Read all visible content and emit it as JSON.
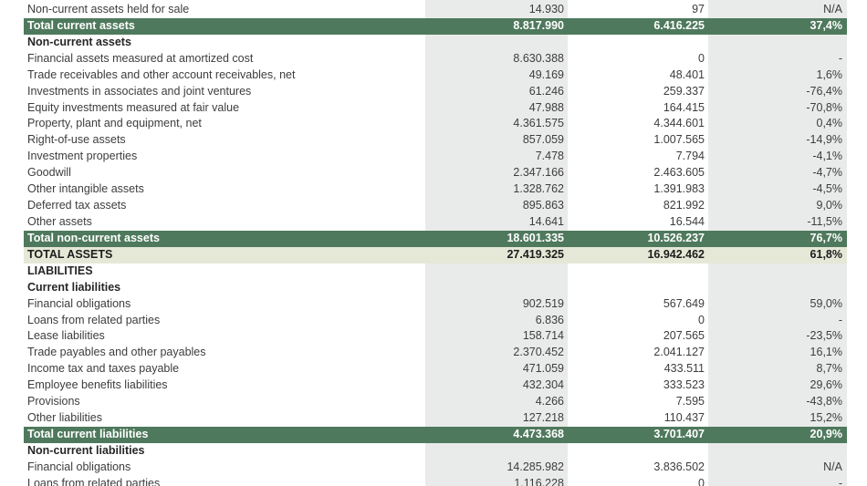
{
  "colors": {
    "total_row_green": "#4f795d",
    "column_fill": "#e8ebe9",
    "grand_total_fill": "#e6e8d7"
  },
  "table": {
    "rows": [
      {
        "type": "normal",
        "label": "Non-current assets held for sale",
        "v1": "14.930",
        "v2": "97",
        "pct": "N/A"
      },
      {
        "type": "total",
        "label": "Total current assets",
        "v1": "8.817.990",
        "v2": "6.416.225",
        "pct": "37,4%"
      },
      {
        "type": "header",
        "label": "Non-current assets",
        "v1": "",
        "v2": "",
        "pct": ""
      },
      {
        "type": "normal",
        "label": "Financial assets measured at amortized cost",
        "v1": "8.630.388",
        "v2": "0",
        "pct": "-"
      },
      {
        "type": "normal",
        "label": "Trade receivables and other account receivables, net",
        "v1": "49.169",
        "v2": "48.401",
        "pct": "1,6%"
      },
      {
        "type": "normal",
        "label": "Investments in associates and joint ventures",
        "v1": "61.246",
        "v2": "259.337",
        "pct": "-76,4%"
      },
      {
        "type": "normal",
        "label": "Equity investments measured at fair value",
        "v1": "47.988",
        "v2": "164.415",
        "pct": "-70,8%"
      },
      {
        "type": "normal",
        "label": "Property, plant and equipment, net",
        "v1": "4.361.575",
        "v2": "4.344.601",
        "pct": "0,4%"
      },
      {
        "type": "normal",
        "label": "Right-of-use assets",
        "v1": "857.059",
        "v2": "1.007.565",
        "pct": "-14,9%"
      },
      {
        "type": "normal",
        "label": "Investment properties",
        "v1": "7.478",
        "v2": "7.794",
        "pct": "-4,1%"
      },
      {
        "type": "normal",
        "label": "Goodwill",
        "v1": "2.347.166",
        "v2": "2.463.605",
        "pct": "-4,7%"
      },
      {
        "type": "normal",
        "label": "Other intangible assets",
        "v1": "1.328.762",
        "v2": "1.391.983",
        "pct": "-4,5%"
      },
      {
        "type": "normal",
        "label": "Deferred tax assets",
        "v1": "895.863",
        "v2": "821.992",
        "pct": "9,0%"
      },
      {
        "type": "normal",
        "label": "Other assets",
        "v1": "14.641",
        "v2": "16.544",
        "pct": "-11,5%"
      },
      {
        "type": "total",
        "label": "Total non-current assets",
        "v1": "18.601.335",
        "v2": "10.526.237",
        "pct": "76,7%"
      },
      {
        "type": "grandtotal",
        "label": "TOTAL ASSETS",
        "v1": "27.419.325",
        "v2": "16.942.462",
        "pct": "61,8%"
      },
      {
        "type": "header",
        "label": "LIABILITIES",
        "v1": "",
        "v2": "",
        "pct": ""
      },
      {
        "type": "header",
        "label": "Current liabilities",
        "v1": "",
        "v2": "",
        "pct": ""
      },
      {
        "type": "normal",
        "label": "Financial obligations",
        "v1": "902.519",
        "v2": "567.649",
        "pct": "59,0%"
      },
      {
        "type": "normal",
        "label": "Loans from related parties",
        "v1": "6.836",
        "v2": "0",
        "pct": "-"
      },
      {
        "type": "normal",
        "label": "Lease liabilities",
        "v1": "158.714",
        "v2": "207.565",
        "pct": "-23,5%"
      },
      {
        "type": "normal",
        "label": "Trade payables and other payables",
        "v1": "2.370.452",
        "v2": "2.041.127",
        "pct": "16,1%"
      },
      {
        "type": "normal",
        "label": "Income tax and taxes payable",
        "v1": "471.059",
        "v2": "433.511",
        "pct": "8,7%"
      },
      {
        "type": "normal",
        "label": "Employee benefits liabilities",
        "v1": "432.304",
        "v2": "333.523",
        "pct": "29,6%"
      },
      {
        "type": "normal",
        "label": "Provisions",
        "v1": "4.266",
        "v2": "7.595",
        "pct": "-43,8%"
      },
      {
        "type": "normal",
        "label": "Other liabilities",
        "v1": "127.218",
        "v2": "110.437",
        "pct": "15,2%"
      },
      {
        "type": "total",
        "label": "Total current liabilities",
        "v1": "4.473.368",
        "v2": "3.701.407",
        "pct": "20,9%"
      },
      {
        "type": "header",
        "label": "Non-current liabilities",
        "v1": "",
        "v2": "",
        "pct": ""
      },
      {
        "type": "normal",
        "label": "Financial obligations",
        "v1": "14.285.982",
        "v2": "3.836.502",
        "pct": "N/A"
      },
      {
        "type": "normal",
        "label": "Loans from related parties",
        "v1": "1.116.228",
        "v2": "0",
        "pct": "-"
      }
    ]
  }
}
